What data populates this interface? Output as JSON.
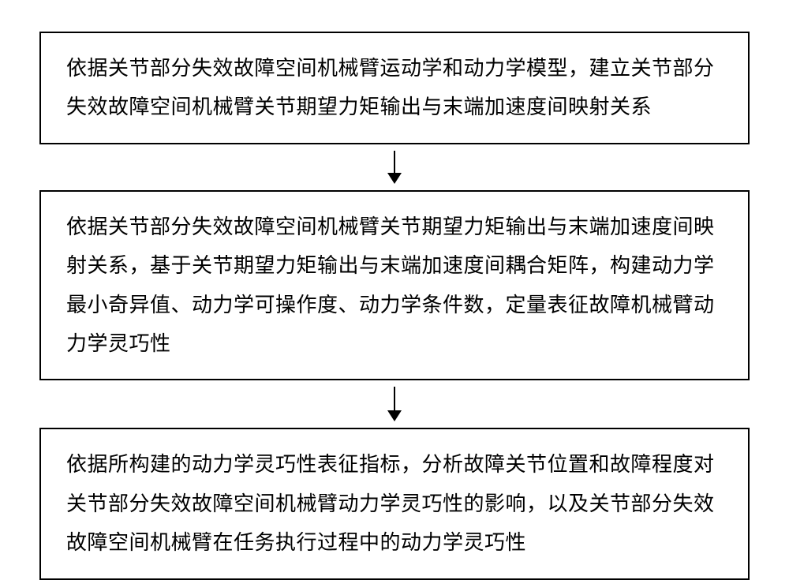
{
  "diagram": {
    "type": "flowchart",
    "direction": "top-to-bottom",
    "background_color": "#ffffff",
    "box_border_color": "#000000",
    "box_border_width": 2,
    "text_color": "#000000",
    "font_family": "SimSun",
    "font_size": 26,
    "line_height": 1.9,
    "arrow_color": "#000000",
    "arrow_line_width": 2,
    "arrow_head_width": 18,
    "arrow_head_height": 14,
    "arrow_gaps": [
      28,
      30
    ],
    "boxes": [
      {
        "text": "依据关节部分失效故障空间机械臂运动学和动力学模型，建立关节部分失效故障空间机械臂关节期望力矩输出与末端加速度间映射关系"
      },
      {
        "text": "依据关节部分失效故障空间机械臂关节期望力矩输出与末端加速度间映射关系，基于关节期望力矩输出与末端加速度间耦合矩阵，构建动力学最小奇异值、动力学可操作度、动力学条件数，定量表征故障机械臂动力学灵巧性"
      },
      {
        "text": "依据所构建的动力学灵巧性表征指标，分析故障关节位置和故障程度对关节部分失效故障空间机械臂动力学灵巧性的影响，以及关节部分失效故障空间机械臂在任务执行过程中的动力学灵巧性"
      }
    ]
  }
}
